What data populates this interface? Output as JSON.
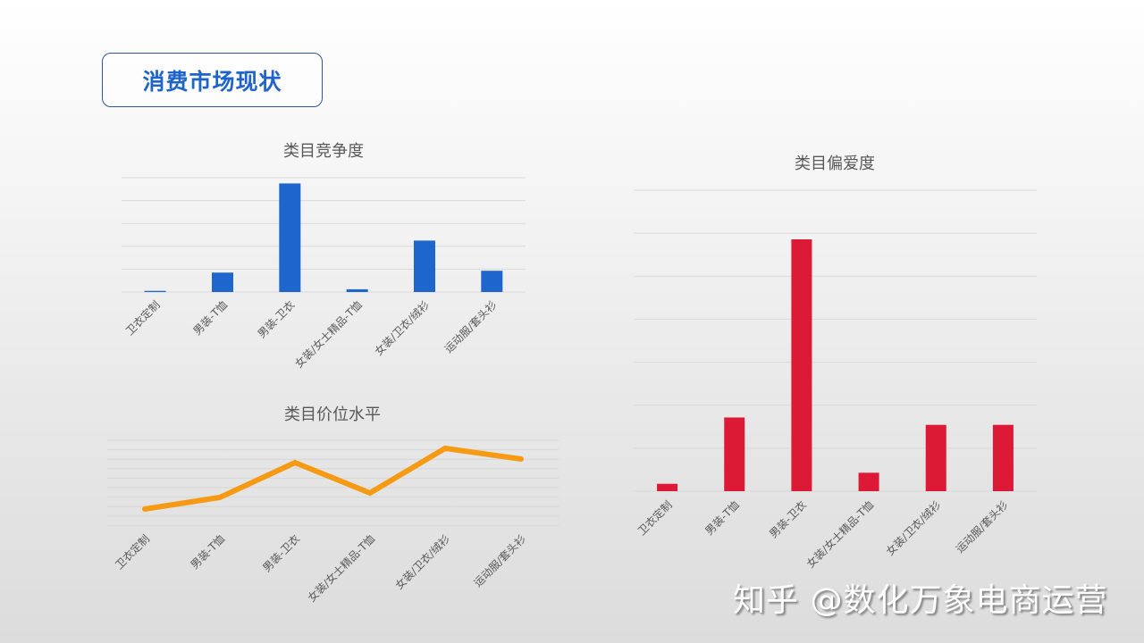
{
  "page": {
    "title": "消费市场现状",
    "watermark": "知乎 @数化万象电商运营"
  },
  "colors": {
    "title_text": "#1f64c8",
    "title_border": "#2f5597",
    "competition_bar": "#1f66cc",
    "preference_bar": "#dc1a36",
    "price_line": "#f59a12",
    "gridline": "#d9d9d9",
    "label_text": "#595959"
  },
  "chart_data": [
    {
      "id": "competition",
      "type": "bar",
      "title": "类目竞争度",
      "categories": [
        "卫衣定制",
        "男装-T恤",
        "男装-卫衣",
        "女装/女士精品-T恤",
        "女装/卫衣/绒衫",
        "运动服/套头衫"
      ],
      "values": [
        0.5,
        8.5,
        47.5,
        1.2,
        22.5,
        9.3
      ],
      "xlabel": "",
      "ylabel": "",
      "ylim": [
        0,
        50
      ],
      "grid": true,
      "gridlines": 5,
      "legend": "none"
    },
    {
      "id": "price_level",
      "type": "line",
      "title": "类目价位水平",
      "categories": [
        "卫衣定制",
        "男装-T恤",
        "男装-卫衣",
        "女装/女士精品-T恤",
        "女装/卫衣/绒衫",
        "运动服/套头衫"
      ],
      "values": [
        10,
        23,
        62,
        28,
        78,
        66
      ],
      "xlabel": "",
      "ylabel": "",
      "ylim": [
        0,
        100
      ],
      "grid": true,
      "legend": "none"
    },
    {
      "id": "preference",
      "type": "bar",
      "title": "类目偏爱度",
      "categories": [
        "卫衣定制",
        "男装-T恤",
        "男装-卫衣",
        "女装/女士精品-T恤",
        "女装/卫衣/绒衫",
        "运动服/套头衫"
      ],
      "values": [
        1.2,
        12,
        41,
        3,
        10.8,
        10.8
      ],
      "xlabel": "",
      "ylabel": "",
      "ylim": [
        0,
        49
      ],
      "grid": true,
      "gridlines": 7,
      "legend": "none"
    }
  ]
}
